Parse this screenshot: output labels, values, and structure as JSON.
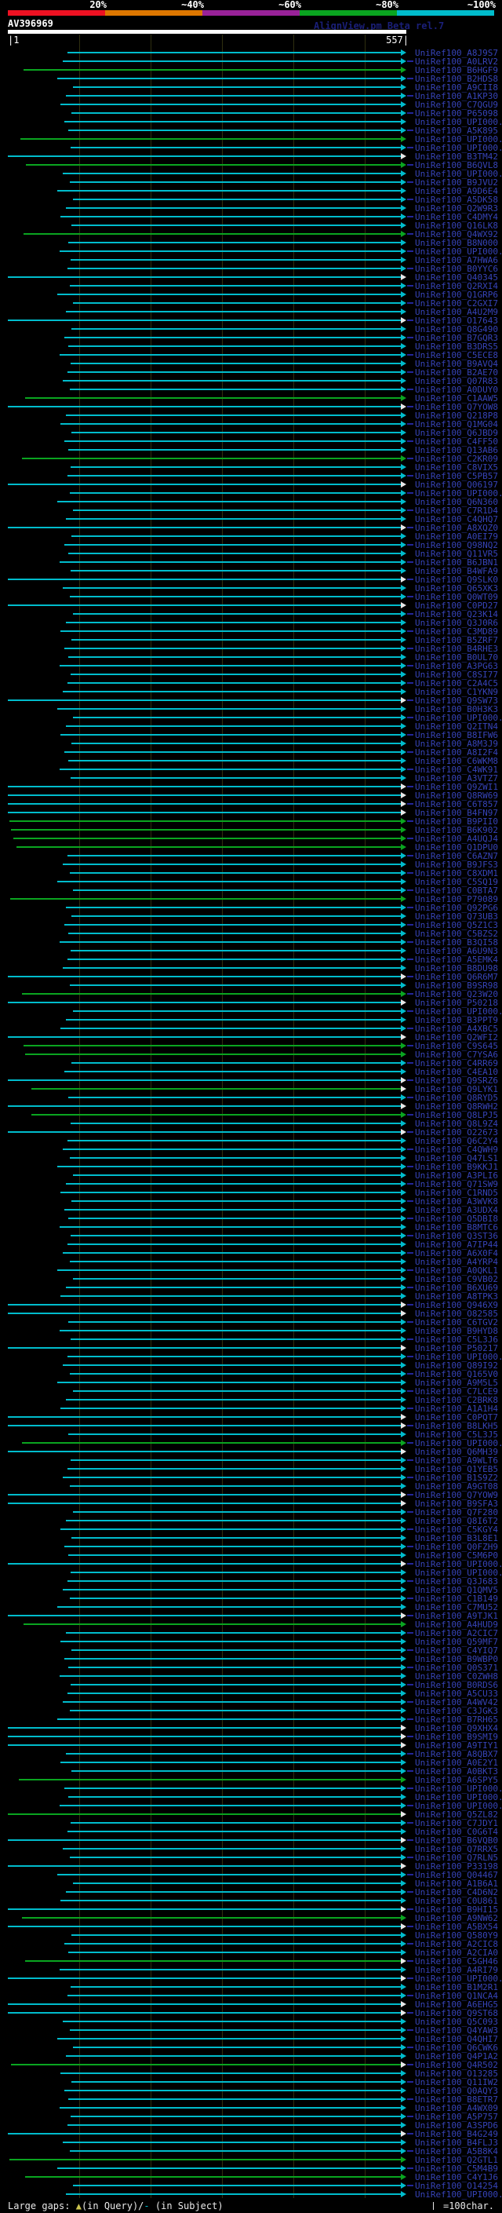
{
  "palette": {
    "white": "#e8e8e8",
    "yellow": "#ccc44e",
    "cyan": "#00bccc",
    "green": "#0aa520",
    "hollow": "#e8e8e8",
    "label_blue": "#3643b8",
    "credit_blue": "#1a1f78",
    "grid_olive": "#2f2f10",
    "query_white": "#ffffff"
  },
  "header": {
    "title": "AV396969",
    "credit": "AlignView.pm Beta rel.7",
    "ruler_start": "|1",
    "ruler_end": "557|"
  },
  "legend": {
    "left_parts": [
      {
        "text": "Large gaps: ",
        "color": "white"
      },
      {
        "text": "▲",
        "color": "yellow"
      },
      {
        "text": "(in Query)/",
        "color": "white"
      },
      {
        "text": "-",
        "color": "cyan"
      },
      {
        "text": " (in Subject)",
        "color": "white"
      }
    ],
    "right": "=100char."
  },
  "chart_data": {
    "type": "bar",
    "orientation": "horizontal",
    "title": "AV396969",
    "query_length": 557,
    "x_axis": {
      "min": 1,
      "max": 557,
      "units": "characters",
      "tick_interval_chars": 100,
      "start_label": "|1",
      "end_label": "557|"
    },
    "identity_scale": {
      "labels": [
        "20%",
        "~40%",
        "~60%",
        "~80%",
        "~100%"
      ],
      "colors": [
        "#ee1122",
        "#dd7700",
        "#992299",
        "#0aa520",
        "#00bccc"
      ],
      "legend_position": "top"
    },
    "grid": true,
    "hits": [
      {
        "l": "UniRef100_A8J9S7",
        "s": 85
      },
      {
        "l": "UniRef100_A0LRV2",
        "s": 78
      },
      {
        "l": "UniRef100_B6HGF9",
        "s": 22,
        "g": 1
      },
      {
        "l": "UniRef100_B2HDS8",
        "s": 70
      },
      {
        "l": "UniRef100_A9CII8",
        "s": 92
      },
      {
        "l": "UniRef100_A1KP30",
        "s": 82
      },
      {
        "l": "UniRef100_C7QGU9",
        "s": 75
      },
      {
        "l": "UniRef100_P65098",
        "s": 90
      },
      {
        "l": "UniRef100_UPI000..",
        "s": 80
      },
      {
        "l": "UniRef100_A5K895",
        "s": 86
      },
      {
        "l": "UniRef100_UPI000..",
        "s": 18,
        "g": 1
      },
      {
        "l": "UniRef100_UPI000..",
        "s": 89
      },
      {
        "l": "UniRef100_B3TM42",
        "s": 0,
        "h": 1
      },
      {
        "l": "UniRef100_B6QVL8",
        "s": 26,
        "g": 1
      },
      {
        "l": "UniRef100_UPI000..",
        "s": 78
      },
      {
        "l": "UniRef100_B9JVU2",
        "s": 88
      },
      {
        "l": "UniRef100_A9D6E4",
        "s": 70
      },
      {
        "l": "UniRef100_A5DK58",
        "s": 92
      },
      {
        "l": "UniRef100_Q2W9R3",
        "s": 82
      },
      {
        "l": "UniRef100_C4DMY4",
        "s": 75
      },
      {
        "l": "UniRef100_Q16LK8",
        "s": 90
      },
      {
        "l": "UniRef100_Q4WX92",
        "s": 22,
        "g": 1
      },
      {
        "l": "UniRef100_B8N000",
        "s": 86
      },
      {
        "l": "UniRef100_UPI000..",
        "s": 73
      },
      {
        "l": "UniRef100_A7HWA6",
        "s": 89
      },
      {
        "l": "UniRef100_B0YYC6",
        "s": 85
      },
      {
        "l": "UniRef100_Q40345",
        "s": 0,
        "h": 1
      },
      {
        "l": "UniRef100_Q2RXI4",
        "s": 88
      },
      {
        "l": "UniRef100_Q1GRP6",
        "s": 70
      },
      {
        "l": "UniRef100_C2GXI7",
        "s": 92
      },
      {
        "l": "UniRef100_A4U2M9",
        "s": 82
      },
      {
        "l": "UniRef100_O17643",
        "s": 0,
        "h": 1
      },
      {
        "l": "UniRef100_Q8G490",
        "s": 90
      },
      {
        "l": "UniRef100_B7GQR3",
        "s": 80
      },
      {
        "l": "UniRef100_B3DRS5",
        "s": 86
      },
      {
        "l": "UniRef100_C5ECE8",
        "s": 73
      },
      {
        "l": "UniRef100_B9AVQ4",
        "s": 89
      },
      {
        "l": "UniRef100_B2AE70",
        "s": 85
      },
      {
        "l": "UniRef100_Q07R83",
        "s": 78
      },
      {
        "l": "UniRef100_A0DUY0",
        "s": 88
      },
      {
        "l": "UniRef100_C1AAW5",
        "s": 24,
        "g": 1
      },
      {
        "l": "UniRef100_Q7YOW8",
        "s": 0,
        "h": 1
      },
      {
        "l": "UniRef100_Q218P8",
        "s": 82
      },
      {
        "l": "UniRef100_Q1MG04",
        "s": 75
      },
      {
        "l": "UniRef100_Q6JBD9",
        "s": 90
      },
      {
        "l": "UniRef100_C4FF50",
        "s": 80
      },
      {
        "l": "UniRef100_Q13AB6",
        "s": 86
      },
      {
        "l": "UniRef100_C2KR09",
        "s": 20,
        "g": 1
      },
      {
        "l": "UniRef100_C8VIX5",
        "s": 89
      },
      {
        "l": "UniRef100_C5PB57",
        "s": 85
      },
      {
        "l": "UniRef100_Q06197",
        "s": 0,
        "h": 1
      },
      {
        "l": "UniRef100_UPI000..",
        "s": 88
      },
      {
        "l": "UniRef100_Q6N360",
        "s": 70
      },
      {
        "l": "UniRef100_C7R1D4",
        "s": 92
      },
      {
        "l": "UniRef100_C4QHQ7",
        "s": 82
      },
      {
        "l": "UniRef100_A8XQZ0",
        "s": 0,
        "h": 1
      },
      {
        "l": "UniRef100_A0EI79",
        "s": 90
      },
      {
        "l": "UniRef100_Q98NQ2",
        "s": 80
      },
      {
        "l": "UniRef100_Q11VR5",
        "s": 86
      },
      {
        "l": "UniRef100_B6JBN1",
        "s": 73
      },
      {
        "l": "UniRef100_B4WFA9",
        "s": 89
      },
      {
        "l": "UniRef100_Q9SLK0",
        "s": 0,
        "h": 1
      },
      {
        "l": "UniRef100_Q65XK3",
        "s": 78
      },
      {
        "l": "UniRef100_Q0WT09",
        "s": 88
      },
      {
        "l": "UniRef100_C0PD27",
        "s": 0,
        "h": 1
      },
      {
        "l": "UniRef100_Q23K14",
        "s": 92
      },
      {
        "l": "UniRef100_Q3J0R6",
        "s": 82
      },
      {
        "l": "UniRef100_C3MD89",
        "s": 75
      },
      {
        "l": "UniRef100_B5ZRF7",
        "s": 90
      },
      {
        "l": "UniRef100_B4RHE3",
        "s": 80
      },
      {
        "l": "UniRef100_B0UL70",
        "s": 86
      },
      {
        "l": "UniRef100_A3PG63",
        "s": 73
      },
      {
        "l": "UniRef100_C8SI77",
        "s": 89
      },
      {
        "l": "UniRef100_C2A4C5",
        "s": 85
      },
      {
        "l": "UniRef100_C1YKN9",
        "s": 78
      },
      {
        "l": "UniRef100_Q9SW73",
        "s": 0,
        "h": 1
      },
      {
        "l": "UniRef100_B0H3K3",
        "s": 70
      },
      {
        "l": "UniRef100_UPI000..",
        "s": 92
      },
      {
        "l": "UniRef100_Q2ITN4",
        "s": 82
      },
      {
        "l": "UniRef100_B8IFW6",
        "s": 75
      },
      {
        "l": "UniRef100_A8M3J9",
        "s": 90
      },
      {
        "l": "UniRef100_A8I2F4",
        "s": 80
      },
      {
        "l": "UniRef100_C6WKM8",
        "s": 86
      },
      {
        "l": "UniRef100_C4WK91",
        "s": 73
      },
      {
        "l": "UniRef100_A3VTZ7",
        "s": 89
      },
      {
        "l": "UniRef100_Q9ZWI1",
        "s": 0,
        "h": 1
      },
      {
        "l": "UniRef100_Q8RW69",
        "s": 0,
        "h": 1
      },
      {
        "l": "UniRef100_C6T857",
        "s": 0,
        "h": 1
      },
      {
        "l": "UniRef100_B4FN97",
        "s": 0,
        "h": 1
      },
      {
        "l": "UniRef100_B9PII0",
        "s": 2,
        "g": 1
      },
      {
        "l": "UniRef100_B6K902",
        "s": 5,
        "g": 1
      },
      {
        "l": "UniRef100_A4UQJ4",
        "s": 8,
        "g": 1
      },
      {
        "l": "UniRef100_Q1DPU0",
        "s": 12,
        "g": 1
      },
      {
        "l": "UniRef100_C6AZN7",
        "s": 85
      },
      {
        "l": "UniRef100_B9JFS3",
        "s": 78
      },
      {
        "l": "UniRef100_C8XDM1",
        "s": 88
      },
      {
        "l": "UniRef100_C5SQ19",
        "s": 70
      },
      {
        "l": "UniRef100_C0BTA7",
        "s": 92
      },
      {
        "l": "UniRef100_P79089",
        "s": 3,
        "g": 1
      },
      {
        "l": "UniRef100_Q92PG6",
        "s": 82
      },
      {
        "l": "UniRef100_Q73UB3",
        "s": 90
      },
      {
        "l": "UniRef100_Q5Z1C3",
        "s": 80
      },
      {
        "l": "UniRef100_C5BZS2",
        "s": 86
      },
      {
        "l": "UniRef100_B3QI58",
        "s": 73
      },
      {
        "l": "UniRef100_A6U9N3",
        "s": 89
      },
      {
        "l": "UniRef100_A5EMK4",
        "s": 85
      },
      {
        "l": "UniRef100_B8DU98",
        "s": 78
      },
      {
        "l": "UniRef100_Q6R6M7",
        "s": 0,
        "h": 1
      },
      {
        "l": "UniRef100_B9SR98",
        "s": 88
      },
      {
        "l": "UniRef100_Q23W20",
        "s": 20,
        "g": 1
      },
      {
        "l": "UniRef100_P50218",
        "s": 0,
        "h": 1
      },
      {
        "l": "UniRef100_UPI000..",
        "s": 92
      },
      {
        "l": "UniRef100_B3PPT9",
        "s": 82
      },
      {
        "l": "UniRef100_A4XBC5",
        "s": 75
      },
      {
        "l": "UniRef100_Q2WFI2",
        "s": 0,
        "h": 1
      },
      {
        "l": "UniRef100_C9S645",
        "s": 22,
        "g": 1
      },
      {
        "l": "UniRef100_C7YSA6",
        "s": 25,
        "g": 1
      },
      {
        "l": "UniRef100_C4RR69",
        "s": 90
      },
      {
        "l": "UniRef100_C4EA10",
        "s": 80
      },
      {
        "l": "UniRef100_Q9SRZ6",
        "s": 0,
        "h": 1
      },
      {
        "l": "UniRef100_Q9LYK1",
        "s": 33,
        "g": 1,
        "h": 1
      },
      {
        "l": "UniRef100_Q8RYD5",
        "s": 86
      },
      {
        "l": "UniRef100_Q8RWH2",
        "s": 0,
        "h": 1
      },
      {
        "l": "UniRef100_Q8LPJ5",
        "s": 33,
        "g": 1
      },
      {
        "l": "UniRef100_Q8L9Z4",
        "s": 89
      },
      {
        "l": "UniRef100_O22673",
        "s": 0,
        "h": 1
      },
      {
        "l": "UniRef100_Q6C2Y4",
        "s": 85
      },
      {
        "l": "UniRef100_C4QWH9",
        "s": 78
      },
      {
        "l": "UniRef100_Q47LS1",
        "s": 88
      },
      {
        "l": "UniRef100_B9KKJ1",
        "s": 70
      },
      {
        "l": "UniRef100_A3PLI6",
        "s": 92
      },
      {
        "l": "UniRef100_Q71SW9",
        "s": 82
      },
      {
        "l": "UniRef100_C1RND5",
        "s": 75
      },
      {
        "l": "UniRef100_A3WVK8",
        "s": 90
      },
      {
        "l": "UniRef100_A3UDX4",
        "s": 80
      },
      {
        "l": "UniRef100_Q5DBI8",
        "s": 86
      },
      {
        "l": "UniRef100_B8MTC6",
        "s": 73
      },
      {
        "l": "UniRef100_Q3ST36",
        "s": 89
      },
      {
        "l": "UniRef100_A7IP44",
        "s": 85
      },
      {
        "l": "UniRef100_A6X0F4",
        "s": 78
      },
      {
        "l": "UniRef100_A4YRP4",
        "s": 88
      },
      {
        "l": "UniRef100_A0QKL1",
        "s": 70
      },
      {
        "l": "UniRef100_C9VB02",
        "s": 92
      },
      {
        "l": "UniRef100_B6XU69",
        "s": 82
      },
      {
        "l": "UniRef100_A8TPK3",
        "s": 75
      },
      {
        "l": "UniRef100_Q946X9",
        "s": 0,
        "h": 1
      },
      {
        "l": "UniRef100_O82585",
        "s": 0,
        "h": 1
      },
      {
        "l": "UniRef100_C6TGV2",
        "s": 86
      },
      {
        "l": "UniRef100_B9HYD8",
        "s": 73
      },
      {
        "l": "UniRef100_C5L3J6",
        "s": 89
      },
      {
        "l": "UniRef100_P50217",
        "s": 0,
        "h": 1
      },
      {
        "l": "UniRef100_UPI000..",
        "s": 85
      },
      {
        "l": "UniRef100_Q89I92",
        "s": 78
      },
      {
        "l": "UniRef100_Q165V0",
        "s": 88
      },
      {
        "l": "UniRef100_A9M5L5",
        "s": 70
      },
      {
        "l": "UniRef100_C7LCE9",
        "s": 92
      },
      {
        "l": "UniRef100_C2BRK8",
        "s": 82
      },
      {
        "l": "UniRef100_A1A1H4",
        "s": 75
      },
      {
        "l": "UniRef100_C0PQT7",
        "s": 0,
        "h": 1
      },
      {
        "l": "UniRef100_B8LKH5",
        "s": 0,
        "h": 1
      },
      {
        "l": "UniRef100_C5L3J5",
        "s": 86
      },
      {
        "l": "UniRef100_UPI000..",
        "s": 20,
        "g": 1
      },
      {
        "l": "UniRef100_Q6MH39",
        "s": 0,
        "h": 1
      },
      {
        "l": "UniRef100_A9WLT6",
        "s": 89
      },
      {
        "l": "UniRef100_Q1YEB5",
        "s": 85
      },
      {
        "l": "UniRef100_B1S9Z2",
        "s": 78
      },
      {
        "l": "UniRef100_A9GT08",
        "s": 88
      },
      {
        "l": "UniRef100_Q7YOW9",
        "s": 0,
        "h": 1
      },
      {
        "l": "UniRef100_B9SFA3",
        "s": 0,
        "h": 1
      },
      {
        "l": "UniRef100_Q7F280",
        "s": 92
      },
      {
        "l": "UniRef100_Q8I6T2",
        "s": 82
      },
      {
        "l": "UniRef100_C5KGY4",
        "s": 75
      },
      {
        "l": "UniRef100_B3L8E1",
        "s": 90
      },
      {
        "l": "UniRef100_Q0FZH9",
        "s": 80
      },
      {
        "l": "UniRef100_C5M6P0",
        "s": 86
      },
      {
        "l": "UniRef100_UPI000..",
        "s": 0,
        "h": 1
      },
      {
        "l": "UniRef100_UPI000..",
        "s": 89
      },
      {
        "l": "UniRef100_Q3J683",
        "s": 85
      },
      {
        "l": "UniRef100_Q1QMV5",
        "s": 78
      },
      {
        "l": "UniRef100_C1B149",
        "s": 88
      },
      {
        "l": "UniRef100_C7MU52",
        "s": 70
      },
      {
        "l": "UniRef100_A9TJK1",
        "s": 0,
        "h": 1
      },
      {
        "l": "UniRef100_A4HUD9",
        "s": 22,
        "g": 1
      },
      {
        "l": "UniRef100_A2CIC7",
        "s": 82
      },
      {
        "l": "UniRef100_Q59MF7",
        "s": 75
      },
      {
        "l": "UniRef100_C4YIQ7",
        "s": 90
      },
      {
        "l": "UniRef100_B9WBP0",
        "s": 80
      },
      {
        "l": "UniRef100_Q0S371",
        "s": 86
      },
      {
        "l": "UniRef100_C0ZWH8",
        "s": 73
      },
      {
        "l": "UniRef100_B0RDS6",
        "s": 89
      },
      {
        "l": "UniRef100_A5CU33",
        "s": 85
      },
      {
        "l": "UniRef100_A4WV42",
        "s": 78
      },
      {
        "l": "UniRef100_C3JGK3",
        "s": 88
      },
      {
        "l": "UniRef100_B7RH65",
        "s": 70
      },
      {
        "l": "UniRef100_Q9XHX4",
        "s": 0,
        "h": 1
      },
      {
        "l": "UniRef100_B9SMI9",
        "s": 0,
        "h": 1
      },
      {
        "l": "UniRef100_A9TIY1",
        "s": 0,
        "h": 1
      },
      {
        "l": "UniRef100_A8QBX7",
        "s": 82
      },
      {
        "l": "UniRef100_A0E2Y1",
        "s": 75
      },
      {
        "l": "UniRef100_A0BKT3",
        "s": 90
      },
      {
        "l": "UniRef100_A6SPY5",
        "s": 16,
        "g": 1
      },
      {
        "l": "UniRef100_UPI000..",
        "s": 80
      },
      {
        "l": "UniRef100_UPI000..",
        "s": 86
      },
      {
        "l": "UniRef100_UPI000..",
        "s": 73
      },
      {
        "l": "UniRef100_Q5ZL82",
        "s": 0,
        "g": 1,
        "h": 1
      },
      {
        "l": "UniRef100_C7JDY1",
        "s": 89
      },
      {
        "l": "UniRef100_C0G6T4",
        "s": 85
      },
      {
        "l": "UniRef100_B6VQB0",
        "s": 0,
        "h": 1
      },
      {
        "l": "UniRef100_Q7RRX5",
        "s": 78
      },
      {
        "l": "UniRef100_Q7RLN5",
        "s": 88
      },
      {
        "l": "UniRef100_P33198",
        "s": 0,
        "h": 1
      },
      {
        "l": "UniRef100_Q04467",
        "s": 70
      },
      {
        "l": "UniRef100_A1B6A1",
        "s": 92
      },
      {
        "l": "UniRef100_C4D6N2",
        "s": 82
      },
      {
        "l": "UniRef100_C0U861",
        "s": 75
      },
      {
        "l": "UniRef100_B9HI15",
        "s": 0,
        "h": 1
      },
      {
        "l": "UniRef100_A9NW62",
        "s": 20,
        "g": 1
      },
      {
        "l": "UniRef100_A5BX54",
        "s": 0,
        "h": 1
      },
      {
        "l": "UniRef100_Q580Y9",
        "s": 90
      },
      {
        "l": "UniRef100_A2CIC8",
        "s": 80
      },
      {
        "l": "UniRef100_A2CIA0",
        "s": 86
      },
      {
        "l": "UniRef100_C5GH46",
        "s": 24,
        "g": 1,
        "h": 1
      },
      {
        "l": "UniRef100_A4RI79",
        "s": 73
      },
      {
        "l": "UniRef100_UPI000..",
        "s": 0,
        "h": 1
      },
      {
        "l": "UniRef100_B1M2R1",
        "s": 89
      },
      {
        "l": "UniRef100_Q1NCA4",
        "s": 85
      },
      {
        "l": "UniRef100_A6EHG5",
        "s": 0,
        "h": 1
      },
      {
        "l": "UniRef100_Q9ST68",
        "s": 0,
        "h": 1
      },
      {
        "l": "UniRef100_Q5C093",
        "s": 78
      },
      {
        "l": "UniRef100_Q4YAW3",
        "s": 88
      },
      {
        "l": "UniRef100_Q4QHI7",
        "s": 70
      },
      {
        "l": "UniRef100_Q6CWK6",
        "s": 92
      },
      {
        "l": "UniRef100_Q4P1A2",
        "s": 82
      },
      {
        "l": "UniRef100_Q4R502",
        "s": 4,
        "g": 1,
        "h": 1
      },
      {
        "l": "UniRef100_O13285",
        "s": 75
      },
      {
        "l": "UniRef100_Q11IW2",
        "s": 90
      },
      {
        "l": "UniRef100_Q0AQY3",
        "s": 80
      },
      {
        "l": "UniRef100_B8ETR7",
        "s": 86
      },
      {
        "l": "UniRef100_A4WX09",
        "s": 73
      },
      {
        "l": "UniRef100_A5P757",
        "s": 89
      },
      {
        "l": "UniRef100_A3SPD6",
        "s": 85
      },
      {
        "l": "UniRef100_B4G249",
        "s": 0,
        "h": 1
      },
      {
        "l": "UniRef100_B4FLJ3",
        "s": 78
      },
      {
        "l": "UniRef100_A5B8K4",
        "s": 88
      },
      {
        "l": "UniRef100_Q2GTL1",
        "s": 2,
        "g": 1
      },
      {
        "l": "UniRef100_C5M4B9",
        "s": 70
      },
      {
        "l": "UniRef100_C4Y1J6",
        "s": 24,
        "g": 1
      },
      {
        "l": "UniRef100_O14254",
        "s": 92
      },
      {
        "l": "UniRef100_UPI000..",
        "s": 82
      }
    ]
  }
}
